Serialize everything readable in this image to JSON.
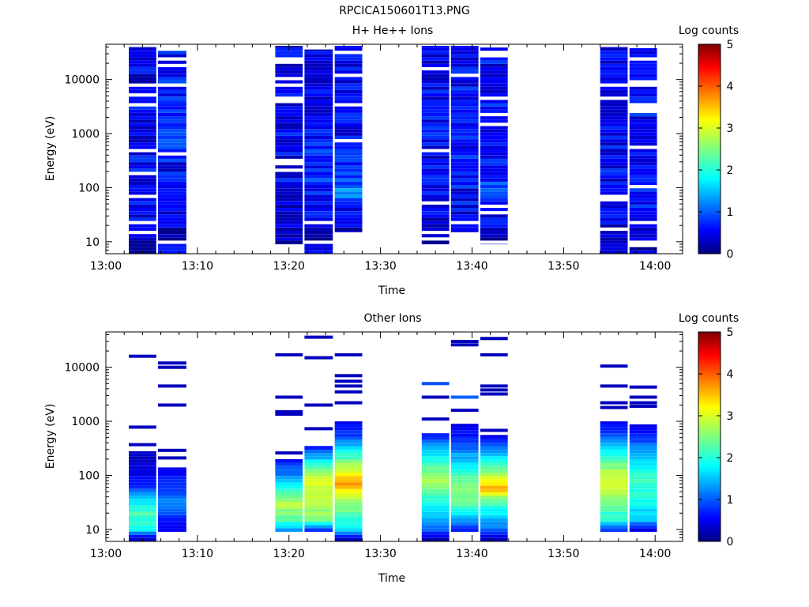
{
  "title": "RPCICA150601T13.PNG",
  "panels_meta": {
    "xlabel": "Time",
    "ylabel": "Energy (eV)",
    "colorbar_label": "Log counts"
  },
  "chart_data": [
    {
      "type": "heatmap",
      "title": "H+ He++ Ions",
      "xlabel": "Time",
      "ylabel": "Energy (eV)",
      "x_ticks": [
        "13:00",
        "13:10",
        "13:20",
        "13:30",
        "13:40",
        "13:50",
        "14:00"
      ],
      "x_range_minutes": [
        0,
        63
      ],
      "y_scale": "log",
      "y_ticks": [
        "10",
        "100",
        "1000",
        "10000"
      ],
      "y_range": [
        6,
        45000
      ],
      "colorbar": {
        "label": "Log counts",
        "range": [
          0,
          5
        ],
        "ticks": [
          "0",
          "1",
          "2",
          "3",
          "4",
          "5"
        ]
      },
      "columns": [
        {
          "t0": 2.5,
          "t1": 5.5,
          "emin": 6,
          "emax": 40000,
          "profile": [
            [
              6,
              0.2
            ],
            [
              20,
              0.5
            ],
            [
              40,
              0.6
            ],
            [
              200,
              0.6
            ],
            [
              40000,
              0.5
            ]
          ]
        },
        {
          "t0": 5.7,
          "t1": 8.8,
          "emin": 6,
          "emax": 37000,
          "profile": [
            [
              6,
              0.8
            ],
            [
              10,
              0.2
            ],
            [
              40,
              0.5
            ],
            [
              200,
              0.6
            ],
            [
              800,
              0.9
            ],
            [
              40000,
              0.6
            ]
          ]
        },
        {
          "t0": 18.5,
          "t1": 21.5,
          "emin": 9,
          "emax": 42000,
          "profile": [
            [
              9,
              0.2
            ],
            [
              40,
              0.5
            ],
            [
              200,
              0.6
            ],
            [
              40000,
              0.5
            ]
          ]
        },
        {
          "t0": 21.7,
          "t1": 24.8,
          "emin": 6,
          "emax": 36000,
          "profile": [
            [
              6,
              0.8
            ],
            [
              12,
              0.2
            ],
            [
              40,
              0.6
            ],
            [
              150,
              0.8
            ],
            [
              40000,
              0.5
            ]
          ]
        },
        {
          "t0": 25,
          "t1": 28,
          "emin": 15,
          "emax": 42000,
          "profile": [
            [
              15,
              0.3
            ],
            [
              40,
              0.7
            ],
            [
              80,
              1.4
            ],
            [
              150,
              1.0
            ],
            [
              300,
              0.7
            ],
            [
              40000,
              0.5
            ]
          ]
        },
        {
          "t0": 34.5,
          "t1": 37.5,
          "emin": 9,
          "emax": 42000,
          "profile": [
            [
              9,
              0.3
            ],
            [
              40,
              0.6
            ],
            [
              200,
              0.6
            ],
            [
              40000,
              0.6
            ]
          ]
        },
        {
          "t0": 37.7,
          "t1": 40.7,
          "emin": 15,
          "emax": 42000,
          "profile": [
            [
              15,
              0.5
            ],
            [
              40,
              0.6
            ],
            [
              200,
              0.7
            ],
            [
              40000,
              0.6
            ]
          ]
        },
        {
          "t0": 40.9,
          "t1": 43.9,
          "emin": 9,
          "emax": 42000,
          "profile": [
            [
              9,
              0.3
            ],
            [
              40,
              0.6
            ],
            [
              80,
              1.0
            ],
            [
              200,
              0.7
            ],
            [
              40000,
              0.6
            ]
          ]
        },
        {
          "t0": 54,
          "t1": 57,
          "emin": 6,
          "emax": 40000,
          "profile": [
            [
              6,
              0.3
            ],
            [
              20,
              0.5
            ],
            [
              100,
              0.6
            ],
            [
              40000,
              0.5
            ]
          ]
        },
        {
          "t0": 57.2,
          "t1": 60.2,
          "emin": 6,
          "emax": 38000,
          "profile": [
            [
              6,
              0.3
            ],
            [
              20,
              0.6
            ],
            [
              100,
              0.7
            ],
            [
              40000,
              0.6
            ]
          ]
        }
      ]
    },
    {
      "type": "heatmap",
      "title": "Other Ions",
      "xlabel": "Time",
      "ylabel": "Energy (eV)",
      "x_ticks": [
        "13:00",
        "13:10",
        "13:20",
        "13:30",
        "13:40",
        "13:50",
        "14:00"
      ],
      "x_range_minutes": [
        0,
        63
      ],
      "y_scale": "log",
      "y_ticks": [
        "10",
        "100",
        "1000",
        "10000"
      ],
      "y_range": [
        6,
        45000
      ],
      "colorbar": {
        "label": "Log counts",
        "range": [
          0,
          5
        ],
        "ticks": [
          "0",
          "1",
          "2",
          "3",
          "4",
          "5"
        ]
      },
      "columns": [
        {
          "t0": 2.5,
          "t1": 5.5,
          "emin": 6,
          "emax": 280,
          "profile": [
            [
              6,
              0.05
            ],
            [
              10,
              1.9
            ],
            [
              20,
              2.3
            ],
            [
              40,
              1.5
            ],
            [
              60,
              0.8
            ],
            [
              100,
              0.5
            ],
            [
              280,
              0.3
            ]
          ],
          "lines": [
            [
              16000,
              0.3
            ],
            [
              780,
              0.3
            ],
            [
              370,
              0.3
            ]
          ]
        },
        {
          "t0": 5.7,
          "t1": 8.8,
          "emin": 9,
          "emax": 140,
          "profile": [
            [
              9,
              0.5
            ],
            [
              15,
              0.7
            ],
            [
              30,
              1.3
            ],
            [
              60,
              0.9
            ],
            [
              140,
              0.4
            ]
          ],
          "lines": [
            [
              12000,
              0.3
            ],
            [
              10000,
              0.3
            ],
            [
              4500,
              0.3
            ],
            [
              2000,
              0.3
            ],
            [
              290,
              0.3
            ],
            [
              210,
              0.3
            ]
          ]
        },
        {
          "t0": 18.5,
          "t1": 21.5,
          "emin": 9,
          "emax": 200,
          "profile": [
            [
              9,
              1.3
            ],
            [
              15,
              2.3
            ],
            [
              30,
              2.8
            ],
            [
              60,
              2.0
            ],
            [
              100,
              1.3
            ],
            [
              200,
              0.6
            ]
          ],
          "lines": [
            [
              17000,
              0.3
            ],
            [
              2800,
              0.3
            ],
            [
              1500,
              0.3
            ],
            [
              1350,
              0.3
            ],
            [
              260,
              0.3
            ]
          ]
        },
        {
          "t0": 21.7,
          "t1": 24.8,
          "emin": 9,
          "emax": 350,
          "profile": [
            [
              9,
              0.6
            ],
            [
              15,
              2.5
            ],
            [
              40,
              2.8
            ],
            [
              80,
              3.0
            ],
            [
              150,
              2.2
            ],
            [
              350,
              0.6
            ]
          ],
          "lines": [
            [
              36000,
              0.3
            ],
            [
              15000,
              0.3
            ],
            [
              2000,
              0.3
            ],
            [
              730,
              0.3
            ]
          ]
        },
        {
          "t0": 25,
          "t1": 28,
          "emin": 6,
          "emax": 1000,
          "profile": [
            [
              6,
              0.1
            ],
            [
              10,
              1.8
            ],
            [
              20,
              2.3
            ],
            [
              40,
              2.8
            ],
            [
              70,
              3.6
            ],
            [
              120,
              3.0
            ],
            [
              250,
              2.0
            ],
            [
              500,
              1.0
            ],
            [
              1000,
              0.5
            ]
          ],
          "lines": [
            [
              17000,
              0.3
            ],
            [
              7000,
              0.3
            ],
            [
              5500,
              0.3
            ],
            [
              4500,
              0.3
            ],
            [
              3500,
              0.3
            ],
            [
              2200,
              0.3
            ]
          ]
        },
        {
          "t0": 34.5,
          "t1": 37.5,
          "emin": 6,
          "emax": 600,
          "profile": [
            [
              6,
              0.1
            ],
            [
              10,
              1.2
            ],
            [
              20,
              1.7
            ],
            [
              50,
              2.3
            ],
            [
              80,
              2.8
            ],
            [
              150,
              2.2
            ],
            [
              300,
              1.5
            ],
            [
              600,
              0.7
            ]
          ],
          "lines": [
            [
              5000,
              1.0
            ],
            [
              2800,
              0.3
            ],
            [
              1100,
              0.3
            ]
          ]
        },
        {
          "t0": 37.7,
          "t1": 40.7,
          "emin": 9,
          "emax": 900,
          "profile": [
            [
              9,
              0.6
            ],
            [
              15,
              1.5
            ],
            [
              30,
              2.3
            ],
            [
              60,
              2.5
            ],
            [
              100,
              2.2
            ],
            [
              200,
              1.6
            ],
            [
              400,
              0.9
            ],
            [
              900,
              0.4
            ]
          ],
          "lines": [
            [
              30000,
              0.3
            ],
            [
              26000,
              0.3
            ],
            [
              2800,
              1.1
            ],
            [
              1600,
              0.3
            ]
          ]
        },
        {
          "t0": 40.9,
          "t1": 43.9,
          "emin": 6,
          "emax": 560,
          "profile": [
            [
              6,
              0.1
            ],
            [
              10,
              1.2
            ],
            [
              20,
              1.8
            ],
            [
              40,
              2.6
            ],
            [
              55,
              3.7
            ],
            [
              80,
              3.0
            ],
            [
              150,
              2.3
            ],
            [
              300,
              1.2
            ],
            [
              560,
              0.4
            ]
          ],
          "lines": [
            [
              34000,
              0.3
            ],
            [
              17000,
              0.3
            ],
            [
              4500,
              0.3
            ],
            [
              3800,
              0.3
            ],
            [
              3200,
              0.3
            ],
            [
              680,
              0.3
            ]
          ]
        },
        {
          "t0": 54,
          "t1": 57,
          "emin": 9,
          "emax": 1000,
          "profile": [
            [
              9,
              0.7
            ],
            [
              15,
              2.0
            ],
            [
              40,
              2.6
            ],
            [
              80,
              3.0
            ],
            [
              150,
              2.5
            ],
            [
              300,
              1.7
            ],
            [
              600,
              1.0
            ],
            [
              1000,
              0.4
            ]
          ],
          "lines": [
            [
              10500,
              0.3
            ],
            [
              4500,
              0.3
            ],
            [
              2200,
              0.3
            ],
            [
              1800,
              0.3
            ]
          ]
        },
        {
          "t0": 57.2,
          "t1": 60.2,
          "emin": 9,
          "emax": 880,
          "profile": [
            [
              9,
              0.4
            ],
            [
              15,
              1.6
            ],
            [
              40,
              2.0
            ],
            [
              80,
              2.2
            ],
            [
              150,
              1.9
            ],
            [
              300,
              1.4
            ],
            [
              500,
              0.8
            ],
            [
              880,
              0.4
            ]
          ],
          "lines": [
            [
              4300,
              0.3
            ],
            [
              2800,
              0.3
            ],
            [
              2200,
              0.3
            ],
            [
              1900,
              0.3
            ]
          ]
        }
      ]
    }
  ]
}
